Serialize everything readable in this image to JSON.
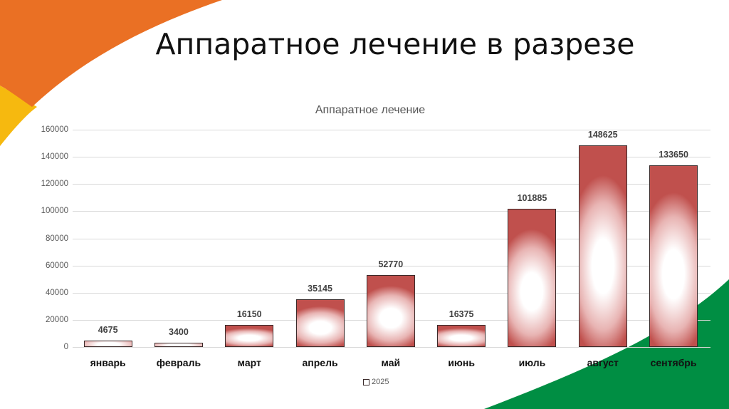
{
  "slide": {
    "title": "Аппаратное лечение в разрезе",
    "colors": {
      "orange": "#EA7024",
      "yellow": "#F6B90F",
      "green": "#008E43",
      "bar_dark": "#C0504D"
    }
  },
  "chart_data": {
    "type": "bar",
    "title": "Аппаратное лечение",
    "categories": [
      "январь",
      "февраль",
      "март",
      "апрель",
      "май",
      "июнь",
      "июль",
      "август",
      "сентябрь"
    ],
    "series": [
      {
        "name": "2025",
        "values": [
          4675,
          3400,
          16150,
          35145,
          52770,
          16375,
          101885,
          148625,
          133650
        ]
      }
    ],
    "xlabel": "",
    "ylabel": "",
    "ylim": [
      0,
      160000
    ],
    "yticks": [
      0,
      20000,
      40000,
      60000,
      80000,
      100000,
      120000,
      140000,
      160000
    ],
    "grid": true,
    "legend_position": "bottom",
    "data_labels": true
  },
  "legend": {
    "label": "2025"
  }
}
